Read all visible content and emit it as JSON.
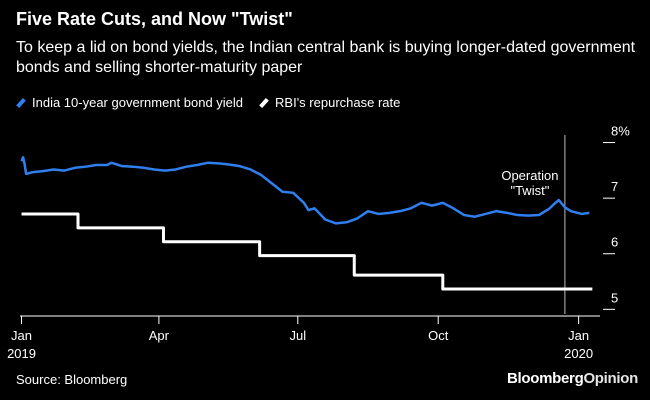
{
  "chart_data": {
    "type": "line",
    "title": "Five Rate Cuts, and Now \"Twist\"",
    "subtitle": "To keep a lid on bond yields, the Indian central bank is buying longer-dated government bonds and selling shorter-maturity paper",
    "source": "Source: Bloomberg",
    "brand": {
      "primary": "Bloomberg",
      "secondary": "Opinion"
    },
    "y_axis": {
      "side": "right",
      "ylim": [
        4.7,
        8.1
      ],
      "ticks": [
        {
          "value": 8,
          "label": "8%"
        },
        {
          "value": 7,
          "label": "7"
        },
        {
          "value": 6,
          "label": "6"
        },
        {
          "value": 5,
          "label": "5"
        }
      ]
    },
    "x_axis": {
      "xlim": [
        "2018-12-31",
        "2020-01-15"
      ],
      "ticks": [
        {
          "date": "2019-01-01",
          "label": "Jan",
          "sublabel": "2019"
        },
        {
          "date": "2019-04-01",
          "label": "Apr",
          "sublabel": ""
        },
        {
          "date": "2019-07-01",
          "label": "Jul",
          "sublabel": ""
        },
        {
          "date": "2019-10-01",
          "label": "Oct",
          "sublabel": ""
        },
        {
          "date": "2020-01-01",
          "label": "Jan",
          "sublabel": "2020"
        }
      ]
    },
    "annotation": {
      "date": "2019-12-23",
      "text_lines": [
        "Operation",
        "\"Twist\""
      ]
    },
    "series": [
      {
        "name": "India 10-year government bond yield",
        "color": "#2f7fef",
        "points": [
          [
            "2019-01-01",
            7.45
          ],
          [
            "2019-01-02",
            7.52
          ],
          [
            "2019-01-03",
            7.4
          ],
          [
            "2019-01-04",
            7.22
          ],
          [
            "2019-01-08",
            7.25
          ],
          [
            "2019-01-15",
            7.27
          ],
          [
            "2019-01-22",
            7.3
          ],
          [
            "2019-01-29",
            7.28
          ],
          [
            "2019-02-05",
            7.33
          ],
          [
            "2019-02-12",
            7.35
          ],
          [
            "2019-02-19",
            7.38
          ],
          [
            "2019-02-26",
            7.38
          ],
          [
            "2019-03-01",
            7.42
          ],
          [
            "2019-03-08",
            7.36
          ],
          [
            "2019-03-15",
            7.35
          ],
          [
            "2019-03-22",
            7.33
          ],
          [
            "2019-03-29",
            7.3
          ],
          [
            "2019-04-05",
            7.28
          ],
          [
            "2019-04-12",
            7.3
          ],
          [
            "2019-04-19",
            7.35
          ],
          [
            "2019-04-26",
            7.38
          ],
          [
            "2019-05-03",
            7.42
          ],
          [
            "2019-05-10",
            7.41
          ],
          [
            "2019-05-17",
            7.39
          ],
          [
            "2019-05-24",
            7.36
          ],
          [
            "2019-05-31",
            7.3
          ],
          [
            "2019-06-07",
            7.2
          ],
          [
            "2019-06-14",
            7.05
          ],
          [
            "2019-06-21",
            6.9
          ],
          [
            "2019-06-28",
            6.88
          ],
          [
            "2019-07-05",
            6.7
          ],
          [
            "2019-07-08",
            6.57
          ],
          [
            "2019-07-12",
            6.6
          ],
          [
            "2019-07-19",
            6.4
          ],
          [
            "2019-07-26",
            6.33
          ],
          [
            "2019-08-02",
            6.35
          ],
          [
            "2019-08-09",
            6.42
          ],
          [
            "2019-08-16",
            6.55
          ],
          [
            "2019-08-23",
            6.5
          ],
          [
            "2019-08-30",
            6.52
          ],
          [
            "2019-09-06",
            6.55
          ],
          [
            "2019-09-13",
            6.6
          ],
          [
            "2019-09-20",
            6.7
          ],
          [
            "2019-09-27",
            6.65
          ],
          [
            "2019-10-04",
            6.7
          ],
          [
            "2019-10-11",
            6.6
          ],
          [
            "2019-10-18",
            6.48
          ],
          [
            "2019-10-25",
            6.45
          ],
          [
            "2019-11-01",
            6.5
          ],
          [
            "2019-11-08",
            6.55
          ],
          [
            "2019-11-15",
            6.52
          ],
          [
            "2019-11-22",
            6.48
          ],
          [
            "2019-11-29",
            6.47
          ],
          [
            "2019-12-06",
            6.48
          ],
          [
            "2019-12-13",
            6.6
          ],
          [
            "2019-12-16",
            6.68
          ],
          [
            "2019-12-19",
            6.75
          ],
          [
            "2019-12-23",
            6.62
          ],
          [
            "2019-12-27",
            6.55
          ],
          [
            "2020-01-03",
            6.5
          ],
          [
            "2020-01-08",
            6.52
          ]
        ]
      },
      {
        "name": "RBI's repurchase rate",
        "color": "#ffffff",
        "step": true,
        "points": [
          [
            "2019-01-01",
            6.5
          ],
          [
            "2019-02-07",
            6.25
          ],
          [
            "2019-04-04",
            6.0
          ],
          [
            "2019-06-06",
            5.75
          ],
          [
            "2019-08-07",
            5.4
          ],
          [
            "2019-10-04",
            5.15
          ],
          [
            "2020-01-10",
            5.15
          ]
        ]
      }
    ]
  }
}
